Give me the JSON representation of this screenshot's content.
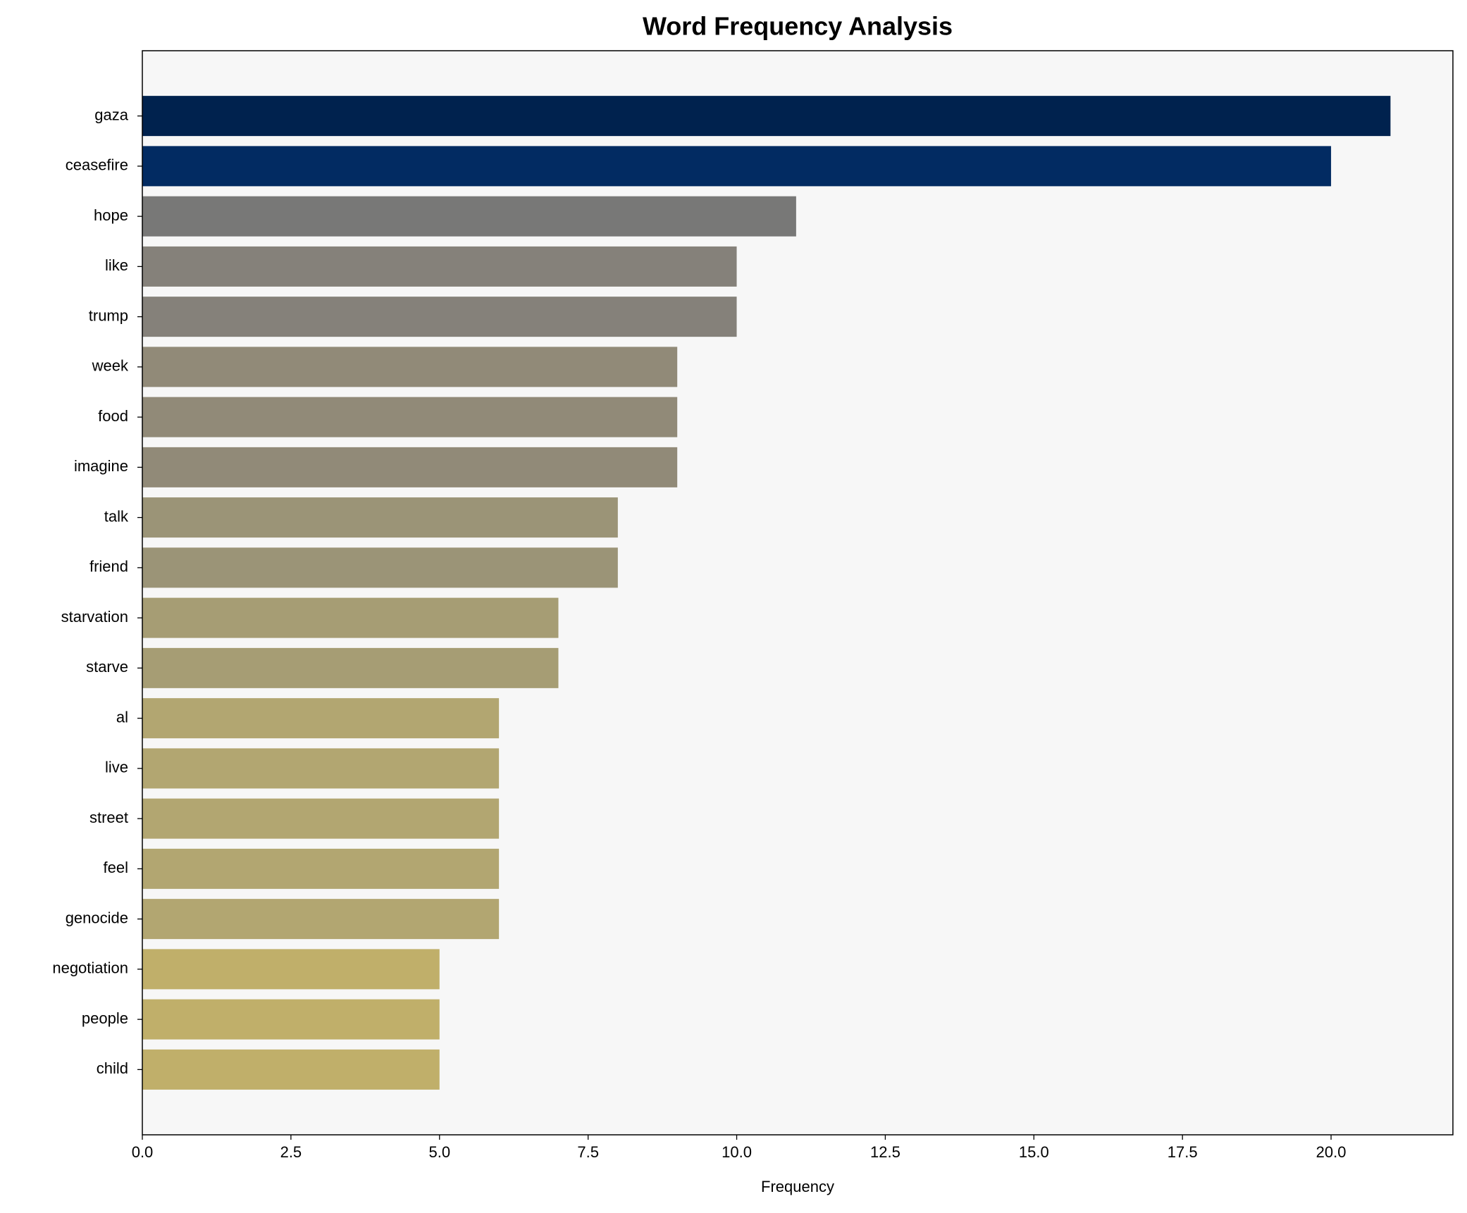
{
  "chart_data": {
    "type": "barh",
    "title": "Word Frequency Analysis",
    "xlabel": "Frequency",
    "categories": [
      "gaza",
      "ceasefire",
      "hope",
      "like",
      "trump",
      "week",
      "food",
      "imagine",
      "talk",
      "friend",
      "starvation",
      "starve",
      "al",
      "live",
      "street",
      "feel",
      "genocide",
      "negotiation",
      "people",
      "child"
    ],
    "values": [
      21,
      20,
      11,
      10,
      10,
      9,
      9,
      9,
      8,
      8,
      7,
      7,
      6,
      6,
      6,
      6,
      6,
      5,
      5,
      5
    ],
    "colors": [
      "#00224e",
      "#022b62",
      "#787877",
      "#85817a",
      "#85817a",
      "#918a78",
      "#918a78",
      "#918a78",
      "#9b9477",
      "#9b9477",
      "#a69d74",
      "#a69d74",
      "#b2a671",
      "#b2a671",
      "#b2a671",
      "#b2a671",
      "#b2a671",
      "#c0af6a",
      "#c0af6a",
      "#c0af6a"
    ],
    "xlim": [
      0,
      22.05
    ],
    "xticks": [
      {
        "value": 0,
        "label": "0.0"
      },
      {
        "value": 2.5,
        "label": "2.5"
      },
      {
        "value": 5,
        "label": "5.0"
      },
      {
        "value": 7.5,
        "label": "7.5"
      },
      {
        "value": 10,
        "label": "10.0"
      },
      {
        "value": 12.5,
        "label": "12.5"
      },
      {
        "value": 15,
        "label": "15.0"
      },
      {
        "value": 17.5,
        "label": "17.5"
      },
      {
        "value": 20,
        "label": "20.0"
      }
    ],
    "background": "#f7f7f7"
  }
}
